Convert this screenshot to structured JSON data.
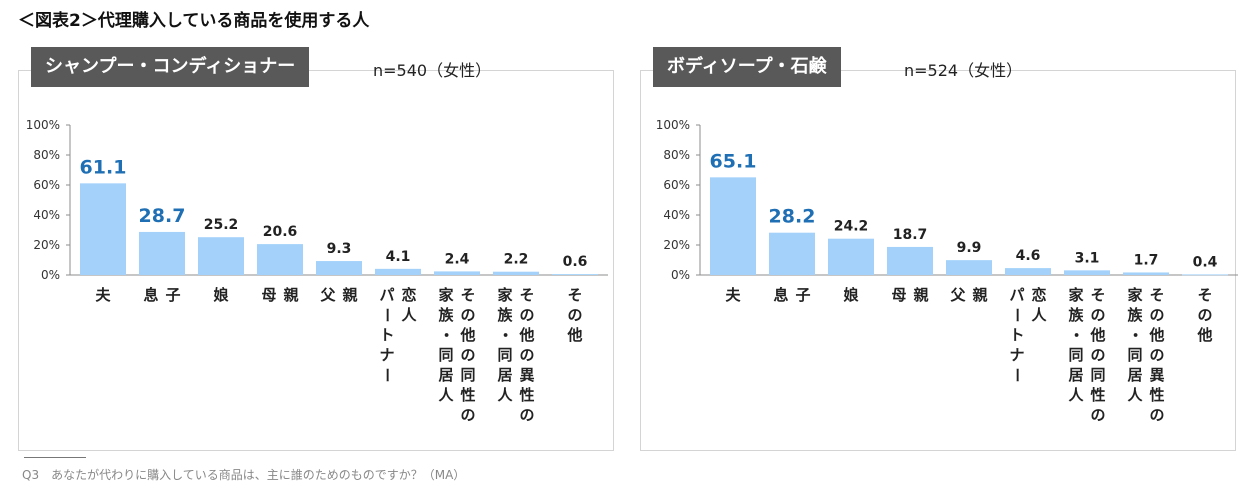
{
  "figure_title": "＜図表2＞代理購入している商品を使用する人",
  "footnote": "Q3　あなたが代わりに購入している商品は、主に誰のためのものですか？（MA）",
  "colors": {
    "bar": "#a3d1fa",
    "highlight_label": "#1f6fb4",
    "label": "#222222",
    "header_bg": "#595959"
  },
  "chart_data": [
    {
      "type": "bar",
      "title": "シャンプー・コンディショナー",
      "subtitle": "n=540（女性）",
      "categories": [
        "夫",
        "息子",
        "娘",
        "母親",
        "父親",
        "恋人・パートナー",
        "家族・同居人その他の同性の",
        "家族・同居人その他の異性の",
        "その他"
      ],
      "category_lines": [
        [
          "夫"
        ],
        [
          "息",
          "子"
        ],
        [
          "娘"
        ],
        [
          "母",
          "親"
        ],
        [
          "父",
          "親"
        ],
        [
          "パートナー",
          "恋人"
        ],
        [
          "家族・同居人",
          "その他の同性の"
        ],
        [
          "家族・同居人",
          "その他の異性の"
        ],
        [
          "その他"
        ]
      ],
      "values": [
        61.1,
        28.7,
        25.2,
        20.6,
        9.3,
        4.1,
        2.4,
        2.2,
        0.6
      ],
      "value_labels": [
        "61.1",
        "28.7",
        "25.2",
        "20.6",
        "9.3",
        "4.1",
        "2.4",
        "2.2",
        "0.6"
      ],
      "highlight_count": 2,
      "yticks": [
        "0%",
        "20%",
        "40%",
        "60%",
        "80%",
        "100%"
      ],
      "ylim": [
        0,
        100
      ],
      "xlabel": "",
      "ylabel": "",
      "grid": false
    },
    {
      "type": "bar",
      "title": "ボディソープ・石鹸",
      "subtitle": "n=524（女性）",
      "categories": [
        "夫",
        "息子",
        "娘",
        "母親",
        "父親",
        "恋人・パートナー",
        "家族・同居人その他の同性の",
        "家族・同居人その他の異性の",
        "その他"
      ],
      "category_lines": [
        [
          "夫"
        ],
        [
          "息",
          "子"
        ],
        [
          "娘"
        ],
        [
          "母",
          "親"
        ],
        [
          "父",
          "親"
        ],
        [
          "パートナー",
          "恋人"
        ],
        [
          "家族・同居人",
          "その他の同性の"
        ],
        [
          "家族・同居人",
          "その他の異性の"
        ],
        [
          "その他"
        ]
      ],
      "values": [
        65.1,
        28.2,
        24.2,
        18.7,
        9.9,
        4.6,
        3.1,
        1.7,
        0.4
      ],
      "value_labels": [
        "65.1",
        "28.2",
        "24.2",
        "18.7",
        "9.9",
        "4.6",
        "3.1",
        "1.7",
        "0.4"
      ],
      "highlight_count": 2,
      "yticks": [
        "0%",
        "20%",
        "40%",
        "60%",
        "80%",
        "100%"
      ],
      "ylim": [
        0,
        100
      ],
      "xlabel": "",
      "ylabel": "",
      "grid": false
    }
  ]
}
